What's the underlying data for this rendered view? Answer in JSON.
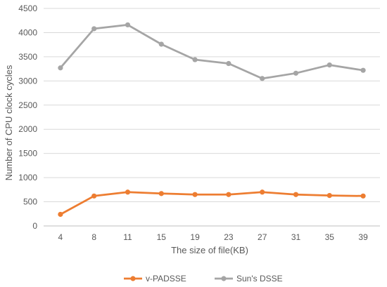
{
  "chart_data": {
    "type": "line",
    "title": "",
    "xlabel": "The size of  file(KB)",
    "ylabel": "Number of CPU clock cycles",
    "categories": [
      "4",
      "8",
      "11",
      "15",
      "19",
      "23",
      "27",
      "31",
      "35",
      "39"
    ],
    "ylim": [
      0,
      4500
    ],
    "yticks": [
      0,
      500,
      1000,
      1500,
      2000,
      2500,
      3000,
      3500,
      4000,
      4500
    ],
    "grid": "horizontal",
    "legend_position": "bottom",
    "series": [
      {
        "name": "v-PADSSE",
        "color": "#ED7D31",
        "values": [
          240,
          620,
          700,
          670,
          650,
          650,
          700,
          650,
          630,
          620
        ]
      },
      {
        "name": "Sun's DSSE",
        "color": "#A5A5A5",
        "values": [
          3270,
          4080,
          4160,
          3760,
          3440,
          3360,
          3050,
          3160,
          3330,
          3220
        ]
      }
    ]
  }
}
